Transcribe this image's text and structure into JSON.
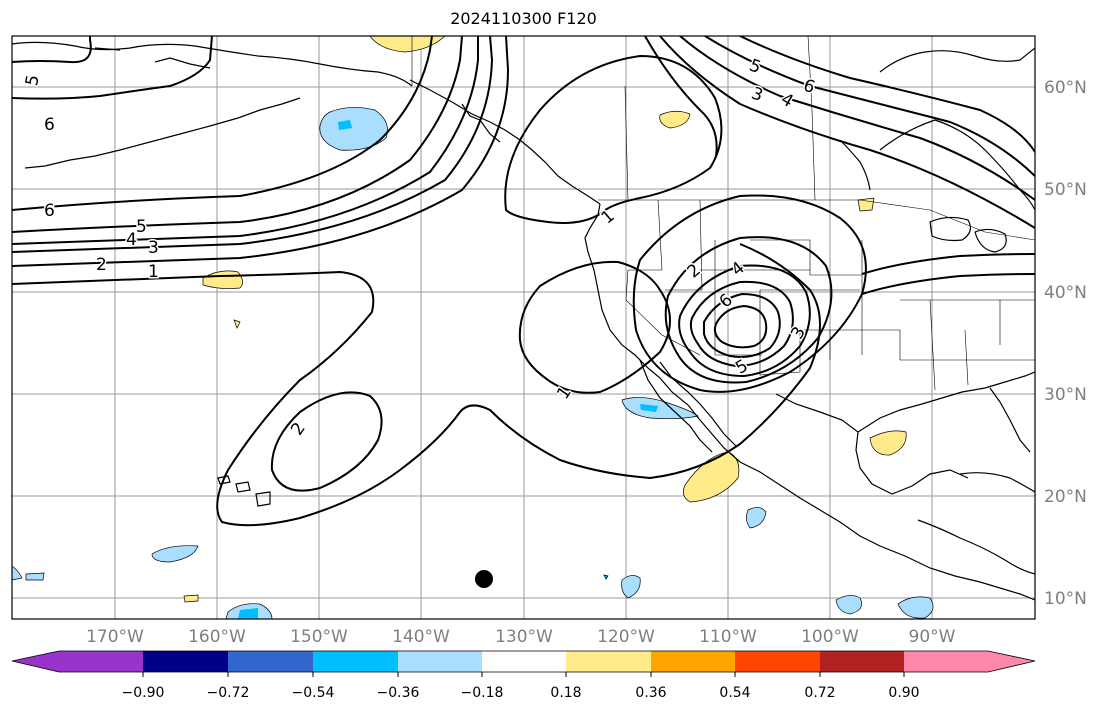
{
  "title": "2024110300 F120",
  "lat_labels": [
    "60°N",
    "50°N",
    "40°N",
    "30°N",
    "20°N",
    "10°N"
  ],
  "lon_labels": [
    "170°W",
    "160°W",
    "150°W",
    "140°W",
    "130°W",
    "120°W",
    "110°W",
    "100°W",
    "90°W"
  ],
  "colorbar": {
    "tick_labels": [
      "−0.90",
      "−0.72",
      "−0.54",
      "−0.36",
      "−0.18",
      "0.18",
      "0.36",
      "0.54",
      "0.72",
      "0.90"
    ],
    "colors": [
      "#9933cc",
      "#000088",
      "#3366cc",
      "#00bfff",
      "#aadeff",
      "#ffffff",
      "#ffeb8a",
      "#ffa500",
      "#ff4500",
      "#b22222",
      "#ff88aa"
    ]
  },
  "contour_labels": {
    "west_5": "5",
    "west_6a": "6",
    "west_6b": "6",
    "band_5": "5",
    "band_4": "4",
    "band_3": "3",
    "band_2": "2",
    "band_1": "1",
    "pac_2": "2",
    "sw_1": "1",
    "ne_5": "5",
    "ne_6": "6",
    "ne_3": "3",
    "ne_4": "4",
    "ak_1": "1",
    "core_2": "2",
    "core_4": "4",
    "core_6": "6",
    "core_3": "3",
    "core_5": "5"
  }
}
